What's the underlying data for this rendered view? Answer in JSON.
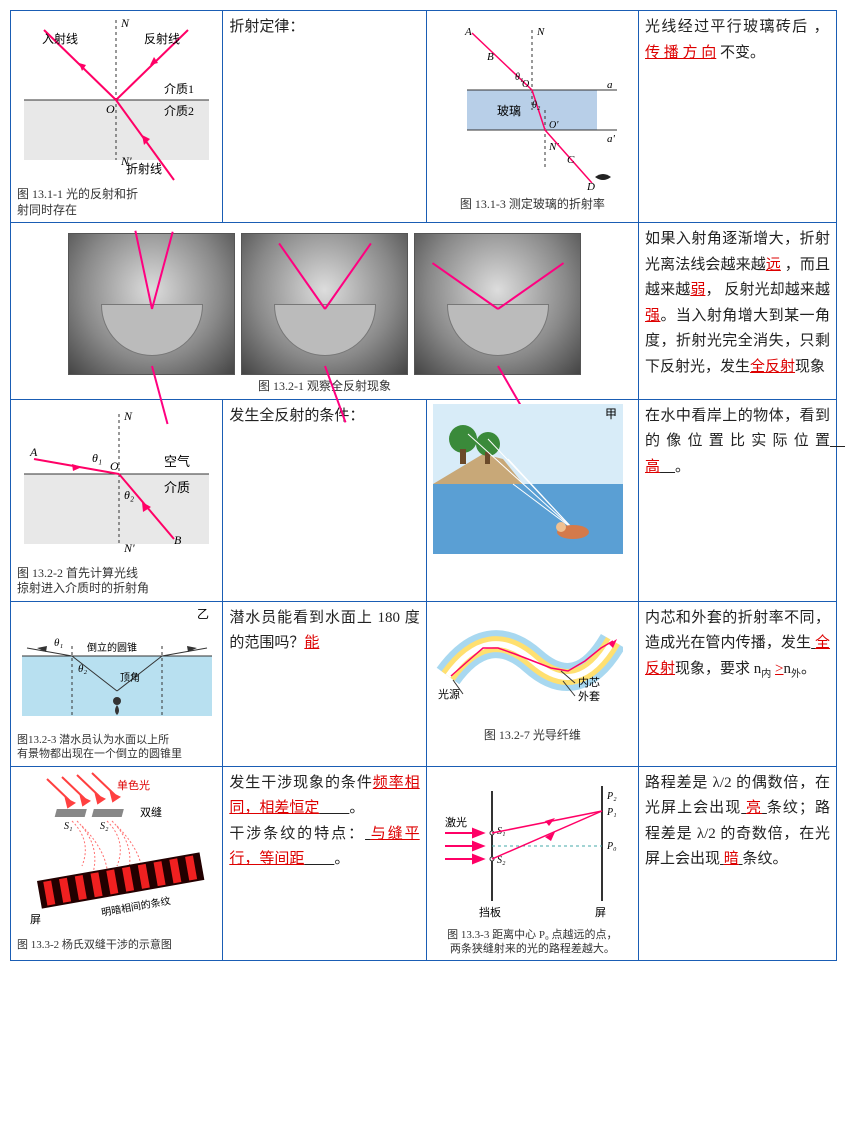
{
  "row1": {
    "fig1": {
      "labels": {
        "N": "N",
        "Np": "N'",
        "O": "O",
        "incident": "入射线",
        "reflect": "反射线",
        "medium1": "介质1",
        "medium2": "介质2",
        "refract": "折射线"
      },
      "caption": "图 13.1-1  光的反射和折\n射同时存在",
      "colors": {
        "ray": "#ff0066",
        "bg": "#e8e8e8"
      }
    },
    "text1": "折射定律：",
    "fig2": {
      "labels": {
        "A": "A",
        "B": "B",
        "C": "C",
        "D": "D",
        "N": "N",
        "Np": "N'",
        "O": "O",
        "Op": "O'",
        "a": "a",
        "ap": "a'",
        "t1": "θ₁",
        "t2": "θ₂",
        "glass": "玻璃"
      },
      "caption": "图 13.1-3  测定玻璃的折射率",
      "colors": {
        "ray": "#ff0066",
        "glass": "#b8cfe8",
        "line": "#333"
      }
    },
    "text2": {
      "pre": "光线经过平行玻璃砖后 ， ",
      "ans": "传 播 方 向",
      "post": " 不变。"
    }
  },
  "row2": {
    "caption": "图 13.2-1  观察全反射现象",
    "text": {
      "parts": [
        "如果入射角逐渐增大，折射光离法线会越来越",
        "远",
        " ，而且越来越",
        "弱",
        "， 反射光却越来越",
        "强",
        "。当入射角增大到某一角度，折射光完全消失，只剩下反射光，发生",
        "全反射",
        "现象"
      ]
    }
  },
  "row3": {
    "fig1": {
      "labels": {
        "N": "N",
        "Np": "N'",
        "A": "A",
        "B": "B",
        "O": "O",
        "t1": "θ₁",
        "t2": "θ₂",
        "air": "空气",
        "medium": "介质"
      },
      "caption": "图 13.2-2  首先计算光线\n掠射进入介质时的折射角",
      "colors": {
        "ray": "#ff0066",
        "medium": "#e8e8e8"
      }
    },
    "text1": "发生全反射的条件：",
    "fig2": {
      "label_jia": "甲"
    },
    "text2": {
      "pre": "在水中看岸上的物体，看到的像位置比实际位置",
      "ans": "高",
      "post": "。"
    }
  },
  "row4": {
    "fig1": {
      "labels": {
        "yi": "乙",
        "t1": "θ₁",
        "t2": "θ₂",
        "cone": "倒立的圆锥",
        "apex": "顶角"
      },
      "caption": "图13.2-3  潜水员认为水面以上所\n有景物都出现在一个倒立的圆锥里",
      "colors": {
        "water": "#b8e0f0",
        "line": "#333"
      }
    },
    "text1": {
      "pre": "潜水员能看到水面上 180 度的范围吗？",
      "ans": "能"
    },
    "fig2": {
      "labels": {
        "src": "光源",
        "core": "内芯",
        "clad": "外套"
      },
      "caption": "图 13.2-7  光导纤维",
      "colors": {
        "core": "#ffe070",
        "clad_out": "#a8d8f0",
        "ray": "#ff0066"
      }
    },
    "text2": {
      "p1": "内芯和外套的折射率不同，造成光在管内传播，发生",
      "ans1": "全反射",
      "p2": "现象，要求 n",
      "sub1": "内",
      "ans2": ">",
      "p3": "n",
      "sub2": "外",
      "p4": "。"
    }
  },
  "row5": {
    "fig1": {
      "labels": {
        "mono": "单色光",
        "slits": "双缝",
        "S1": "S₁",
        "S2": "S₂",
        "screen": "屏",
        "fringe": "明暗相间的条纹"
      },
      "caption": "图 13.3-2  杨氏双缝干涉的示意图",
      "colors": {
        "ray": "#ff5555",
        "bar": "#888",
        "band": "#c00"
      }
    },
    "text1": {
      "p1": "发生干涉现象的条件",
      "ans1": "频率相同，相差恒定",
      "p2": "。\n干涉条纹的特点：",
      "ans2": "与缝平行，等间距",
      "p3": "。"
    },
    "fig2": {
      "labels": {
        "laser": "激光",
        "S1": "S₁",
        "S2": "S₂",
        "baffle": "挡板",
        "screen": "屏",
        "P0": "P₀",
        "P1": "P₁",
        "P2": "P₂"
      },
      "caption": "图 13.3-3  距离中心 P₀ 点越远的点，\n两条狭缝射来的光的路程差越大。",
      "colors": {
        "ray": "#ff0066",
        "axis": "#4aa"
      }
    },
    "text2": {
      "p1": "路程差是 λ/2 的偶数倍，在光屏上会出现",
      "ans1": "亮",
      "p2": "条纹；路程差是 λ/2 的奇数倍，在光屏上会出现",
      "ans2": "暗",
      "p3": "条纹。"
    }
  }
}
